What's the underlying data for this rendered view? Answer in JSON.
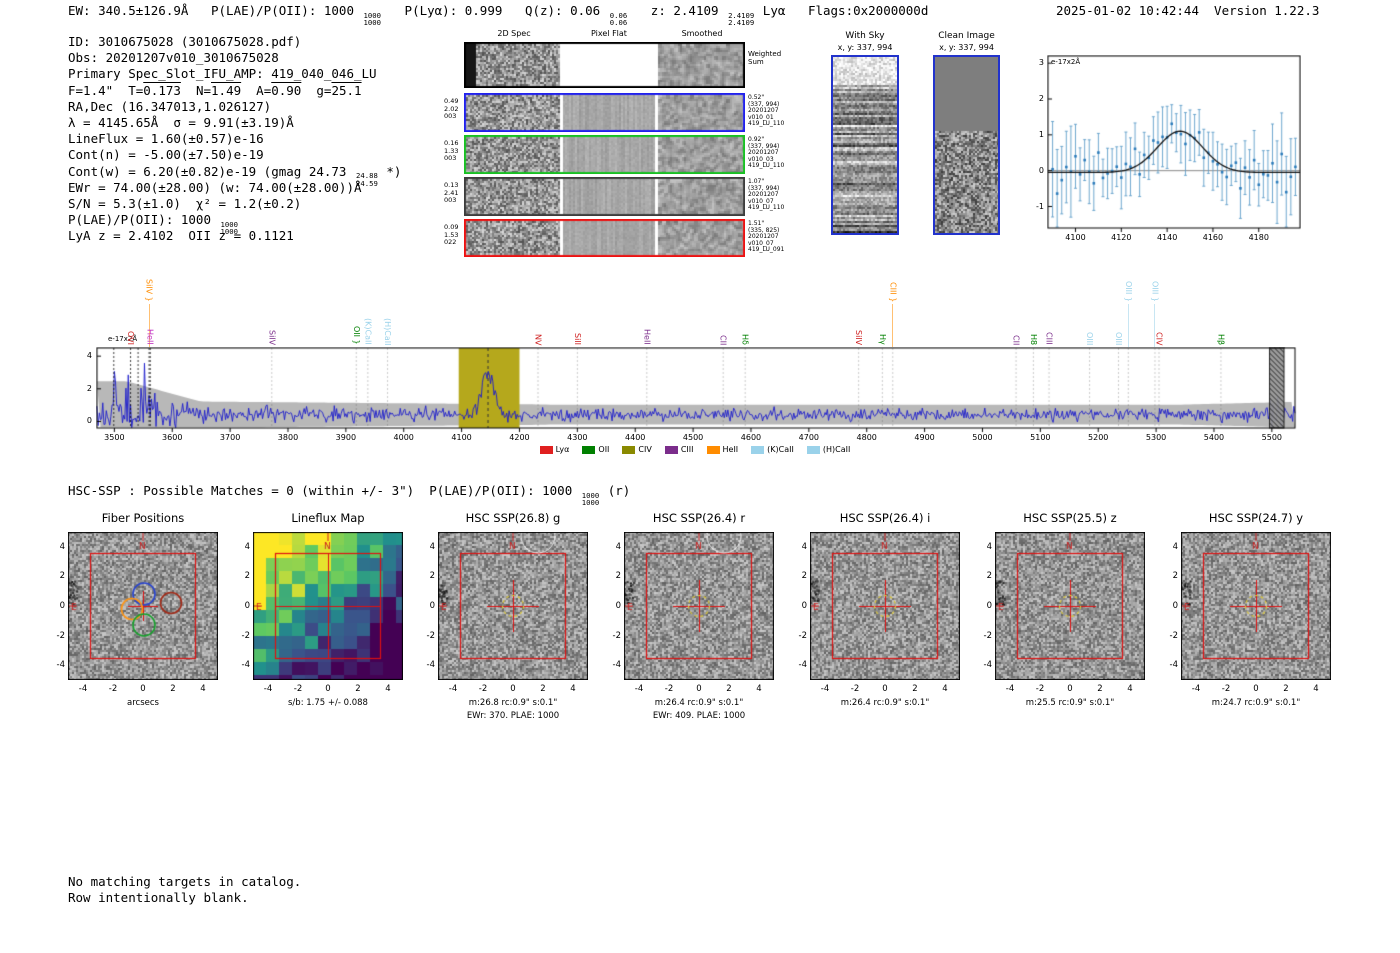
{
  "header": {
    "segments": [
      {
        "t": "EW: 340.5±126.9Å   P(LAE)/P(OII): 1000 "
      },
      {
        "frac": [
          "1000",
          "1000"
        ]
      },
      {
        "t": "   P(Lyα): 0.999   Q(z): 0.06 "
      },
      {
        "frac": [
          "0.06",
          "0.06"
        ]
      },
      {
        "t": "   z: 2.4109 "
      },
      {
        "frac": [
          "2.4109",
          "2.4109"
        ]
      },
      {
        "t": " Lyα   Flags:0x2000000d"
      }
    ],
    "right": "2025-01-02 10:42:44  Version 1.22.3"
  },
  "info": {
    "lines": [
      [
        {
          "t": "ID: 3010675028 (3010675028.pdf)"
        }
      ],
      [
        {
          "t": "Obs: 20201207v010_3010675028"
        }
      ],
      [
        {
          "t": "Primary Spec_Slot_IFU_AMP: 419_040_046_LU"
        }
      ],
      [
        {
          "t": "F=1.4\"  T="
        },
        {
          "t": "0.173",
          "ol": true
        },
        {
          "t": "  N="
        },
        {
          "t": "1.49",
          "ol": true
        },
        {
          "t": "  A="
        },
        {
          "t": "0.90",
          "ol": true
        },
        {
          "t": "  g="
        },
        {
          "t": "25.1",
          "ol": true
        }
      ],
      [
        {
          "t": "RA,Dec (16.347013,1.026127)"
        }
      ],
      [
        {
          "t": "λ = 4145.65Å  σ = 9.91(±3.19)Å"
        }
      ],
      [
        {
          "t": "LineFlux = 1.60(±0.57)e-16"
        }
      ],
      [
        {
          "t": "Cont(n) = -5.00(±7.50)e-19"
        }
      ],
      [
        {
          "t": "Cont(w) = 6.20(±0.82)e-19 (gmag 24.73 "
        },
        {
          "frac": [
            "24.88",
            "24.59"
          ]
        },
        {
          "t": " *)"
        }
      ],
      [
        {
          "t": "EWr = 74.00(±28.00) (w: 74.00(±28.00))Å"
        }
      ],
      [
        {
          "t": "S/N = 5.3(±1.0)  χ² = 1.2(±0.2)"
        }
      ],
      [
        {
          "t": "P(LAE)/P(OII): 1000 "
        },
        {
          "frac": [
            "1000",
            "1000"
          ]
        }
      ],
      [
        {
          "t": "LyA z = 2.4102  OII z = 0.1121"
        }
      ]
    ]
  },
  "spec2d": {
    "col_headers": [
      "2D Spec",
      "Pixel Flat",
      "Smoothed"
    ],
    "weighted_label": [
      "Weighted",
      "Sum"
    ],
    "rows": [
      {
        "border": "#000000",
        "left": [],
        "right": [],
        "weighted": true
      },
      {
        "border": "#2020ee",
        "left": [
          "0.49",
          "2.02",
          "003"
        ],
        "right": [
          "0.52\"",
          "(337, 994)",
          "20201207",
          "v010_01",
          "419_LU_110"
        ]
      },
      {
        "border": "#17c222",
        "left": [
          "0.16",
          "1.33",
          "003"
        ],
        "right": [
          "0.92\"",
          "(337, 994)",
          "20201207",
          "v010_03",
          "419_LU_110"
        ]
      },
      {
        "border": "#3d3d3d",
        "left": [
          "0.13",
          "2.41",
          "003"
        ],
        "right": [
          "1.07\"",
          "(337, 994)",
          "20201207",
          "v010_07",
          "419_LU_110"
        ]
      },
      {
        "border": "#ee1010",
        "left": [
          "0.09",
          "1.53",
          "022"
        ],
        "right": [
          "1.51\"",
          "(335, 825)",
          "20201207",
          "v010_07",
          "419_LU_091"
        ]
      }
    ]
  },
  "sky_panel": {
    "title": "With Sky",
    "subtitle": "x, y: 337, 994",
    "border": "#2233cc"
  },
  "clean_panel": {
    "title": "Clean Image",
    "subtitle": "x, y: 337, 994",
    "border": "#2233cc"
  },
  "chart_data": [
    {
      "id": "line_fit_cutout",
      "type": "scatter",
      "ylabel": "e-17x2Å",
      "xlim": [
        4088,
        4198
      ],
      "ylim": [
        -1.6,
        3.2
      ],
      "xticks": [
        4100,
        4120,
        4140,
        4160,
        4180
      ],
      "yticks": [
        3,
        2,
        1,
        0,
        -1
      ],
      "gaussian": {
        "center": 4145.65,
        "sigma": 9.91,
        "amplitude": 1.15,
        "baseline": -0.05
      },
      "point_interval": 2,
      "point_color": "#2b7bba",
      "errorbar_color": "#5e9dc8",
      "fit_color": "#111111",
      "zero_line_color": "#888888"
    },
    {
      "id": "full_spectrum",
      "type": "line",
      "ylabel": "e-17x2Å",
      "xlim": [
        3470,
        5540
      ],
      "ylim": [
        -0.4,
        4.5
      ],
      "xticks": [
        3500,
        3600,
        3700,
        3800,
        3900,
        4000,
        4100,
        4200,
        4300,
        4400,
        4500,
        4600,
        4700,
        4800,
        4900,
        5000,
        5100,
        5200,
        5300,
        5400,
        5500
      ],
      "yticks": [
        0,
        2,
        4
      ],
      "line_color": "#1c1ccc",
      "error_band_color": "#b8b8b8",
      "continuum_level": 0.42,
      "emission_line": {
        "center": 4145.65,
        "sigma": 9.91,
        "amplitude": 2.6
      },
      "highlight_band": {
        "x0": 4095,
        "x1": 4200,
        "color": "#b5a81c",
        "dashed_line_x": 4145.65
      },
      "edge_artifact": {
        "x0": 5496,
        "x1": 5521
      },
      "extra_dark_lines": [
        3499,
        3541
      ],
      "line_labels": [
        {
          "wl": 3560,
          "text": "SiIV }",
          "color": "#ff8c00",
          "top": 1
        },
        {
          "wl": 3528,
          "text": "OVI",
          "color": "#cf2020"
        },
        {
          "wl": 3562,
          "text": "HeII",
          "color": "#c02cc0"
        },
        {
          "wl": 3772,
          "text": "SiIV",
          "color": "#7b2d8b"
        },
        {
          "wl": 3918,
          "text": "OII }",
          "color": "#008000"
        },
        {
          "wl": 3938,
          "text": "(K)CaII",
          "color": "#9ad2ea"
        },
        {
          "wl": 3972,
          "text": "(H)CaII",
          "color": "#9ad2ea"
        },
        {
          "wl": 4232,
          "text": "NV",
          "color": "#cf2020"
        },
        {
          "wl": 4300,
          "text": "SiII",
          "color": "#cf2020"
        },
        {
          "wl": 4420,
          "text": "HeII",
          "color": "#7b2d8b"
        },
        {
          "wl": 4552,
          "text": "CII",
          "color": "#7b2d8b"
        },
        {
          "wl": 4590,
          "text": "Hδ",
          "color": "#008000"
        },
        {
          "wl": 4786,
          "text": "SiIV",
          "color": "#cf2020"
        },
        {
          "wl": 4827,
          "text": "Hγ",
          "color": "#008000"
        },
        {
          "wl": 4845,
          "text": "CIII }",
          "color": "#ff8c00",
          "top": 1
        },
        {
          "wl": 5058,
          "text": "CII",
          "color": "#7b2d8b"
        },
        {
          "wl": 5088,
          "text": "H8",
          "color": "#008000"
        },
        {
          "wl": 5115,
          "text": "CIII",
          "color": "#7b2d8b"
        },
        {
          "wl": 5185,
          "text": "OIII",
          "color": "#9ad2ea"
        },
        {
          "wl": 5235,
          "text": "OIII",
          "color": "#9ad2ea"
        },
        {
          "wl": 5252,
          "text": "OIII }",
          "color": "#9ad2ea",
          "top": 1
        },
        {
          "wl": 5298,
          "text": "OIII }",
          "color": "#9ad2ea",
          "top": 1
        },
        {
          "wl": 5305,
          "text": "CIV",
          "color": "#cf2020"
        },
        {
          "wl": 5412,
          "text": "Hβ",
          "color": "#008000"
        }
      ],
      "legend": [
        {
          "label": "Lyα",
          "color": "#e02020"
        },
        {
          "label": "OII",
          "color": "#008000"
        },
        {
          "label": "CIV",
          "color": "#8a8a00"
        },
        {
          "label": "CIII",
          "color": "#7b2d8b"
        },
        {
          "label": "HeII",
          "color": "#ff8c00"
        },
        {
          "label": "(K)CaII",
          "color": "#9ad2ea"
        },
        {
          "label": "(H)CaII",
          "color": "#9ad2ea"
        }
      ]
    }
  ],
  "hsc_line": {
    "segments": [
      {
        "t": "HSC-SSP : Possible Matches = 0 (within +/- 3\")  P(LAE)/P(OII): 1000 "
      },
      {
        "frac": [
          "1000",
          "1000"
        ]
      },
      {
        "t": " (r)"
      }
    ]
  },
  "cutouts": {
    "ticks": [
      -4,
      -2,
      0,
      2,
      4
    ],
    "compass": {
      "n": "N",
      "e": "E"
    },
    "panels": [
      {
        "title": "Fiber Positions",
        "xlabel": "arcsecs",
        "type": "fiber"
      },
      {
        "title": "Lineflux Map",
        "xlabel": "s/b: 1.75 +/- 0.088",
        "type": "lineflux"
      },
      {
        "title": "HSC SSP(26.8) g",
        "xlabel": "m:26.8 rc:0.9\"  s:0.1\"",
        "xlabel2": "EWr: 370. PLAE: 1000",
        "type": "img"
      },
      {
        "title": "HSC SSP(26.4) r",
        "xlabel": "m:26.4 rc:0.9\"  s:0.1\"",
        "xlabel2": "EWr: 409. PLAE: 1000",
        "type": "img"
      },
      {
        "title": "HSC SSP(26.4) i",
        "xlabel": "m:26.4 rc:0.9\"  s:0.1\"",
        "type": "img"
      },
      {
        "title": "HSC SSP(25.5) z",
        "xlabel": "m:25.5 rc:0.9\"  s:0.1\"",
        "type": "img"
      },
      {
        "title": "HSC SSP(24.7) y",
        "xlabel": "m:24.7 rc:0.9\"  s:0.1\"",
        "type": "img"
      }
    ]
  },
  "footer": {
    "lines": [
      "No matching targets in catalog.",
      "Row intentionally blank."
    ]
  }
}
